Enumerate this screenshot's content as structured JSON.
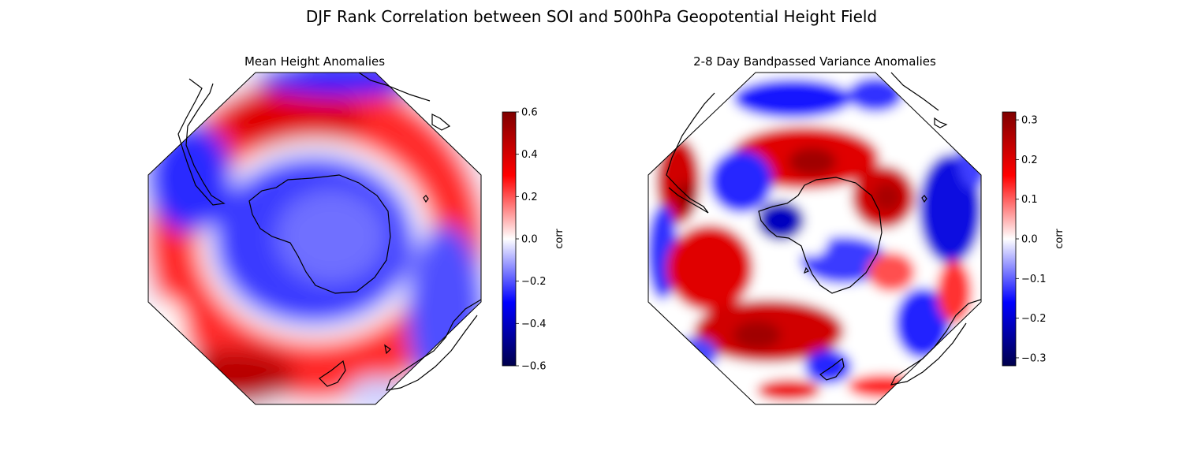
{
  "figure": {
    "title": "DJF Rank Correlation between SOI and 500hPa Geopotential Height Field"
  },
  "chart_data": [
    {
      "type": "heatmap",
      "projection": "south-polar-stereographic",
      "title": "Mean Height Anomalies",
      "colormap": "seismic",
      "colorbar": {
        "label": "corr",
        "vmin": -0.6,
        "vmax": 0.6,
        "ticks": [
          -0.6,
          -0.4,
          -0.2,
          0.0,
          0.2,
          0.4,
          0.6
        ],
        "tick_labels": [
          "−0.6",
          "−0.4",
          "−0.2",
          "0.0",
          "0.2",
          "0.4",
          "0.6"
        ]
      },
      "features": [
        {
          "name": "antarctic-low",
          "value": -0.35
        },
        {
          "name": "mid-latitude-ring-high",
          "value": 0.3
        },
        {
          "name": "outer-ring-low",
          "value": -0.25
        }
      ]
    },
    {
      "type": "heatmap",
      "projection": "south-polar-stereographic",
      "title": "2-8 Day Bandpassed Variance Anomalies",
      "colormap": "seismic",
      "colorbar": {
        "label": "corr",
        "vmin": -0.32,
        "vmax": 0.32,
        "ticks": [
          -0.3,
          -0.2,
          -0.1,
          0.0,
          0.1,
          0.2,
          0.3
        ],
        "tick_labels": [
          "−0.3",
          "−0.2",
          "−0.1",
          "0.0",
          "0.1",
          "0.2",
          "0.3"
        ]
      }
    }
  ]
}
